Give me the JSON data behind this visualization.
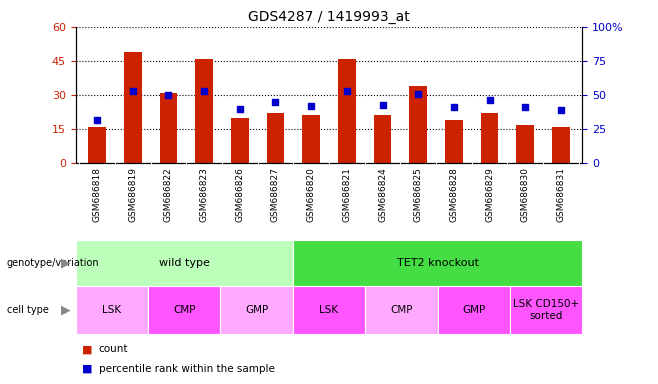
{
  "title": "GDS4287 / 1419993_at",
  "samples": [
    "GSM686818",
    "GSM686819",
    "GSM686822",
    "GSM686823",
    "GSM686826",
    "GSM686827",
    "GSM686820",
    "GSM686821",
    "GSM686824",
    "GSM686825",
    "GSM686828",
    "GSM686829",
    "GSM686830",
    "GSM686831"
  ],
  "counts": [
    16,
    49,
    31,
    46,
    20,
    22,
    21,
    46,
    21,
    34,
    19,
    22,
    17,
    16
  ],
  "percentiles": [
    32,
    53,
    50,
    53,
    40,
    45,
    42,
    53,
    43,
    51,
    41,
    46,
    41,
    39
  ],
  "ylim_left": [
    0,
    60
  ],
  "ylim_right": [
    0,
    100
  ],
  "yticks_left": [
    0,
    15,
    30,
    45,
    60
  ],
  "ytick_labels_left": [
    "0",
    "15",
    "30",
    "45",
    "60"
  ],
  "ytick_labels_right": [
    "0",
    "25",
    "50",
    "75",
    "100%"
  ],
  "bar_color": "#cc2200",
  "dot_color": "#0000cc",
  "genotype_row": [
    {
      "label": "wild type",
      "start": 0,
      "end": 6,
      "color": "#bbffbb"
    },
    {
      "label": "TET2 knockout",
      "start": 6,
      "end": 14,
      "color": "#44dd44"
    }
  ],
  "celltype_row": [
    {
      "label": "LSK",
      "start": 0,
      "end": 2,
      "color": "#ffaaff"
    },
    {
      "label": "CMP",
      "start": 2,
      "end": 4,
      "color": "#ff55ff"
    },
    {
      "label": "GMP",
      "start": 4,
      "end": 6,
      "color": "#ffaaff"
    },
    {
      "label": "LSK",
      "start": 6,
      "end": 8,
      "color": "#ff55ff"
    },
    {
      "label": "CMP",
      "start": 8,
      "end": 10,
      "color": "#ffaaff"
    },
    {
      "label": "GMP",
      "start": 10,
      "end": 12,
      "color": "#ff55ff"
    },
    {
      "label": "LSK CD150+\nsorted",
      "start": 12,
      "end": 14,
      "color": "#ff55ff"
    }
  ],
  "legend_count_label": "count",
  "legend_pct_label": "percentile rank within the sample",
  "figsize": [
    6.58,
    3.84
  ],
  "dpi": 100
}
